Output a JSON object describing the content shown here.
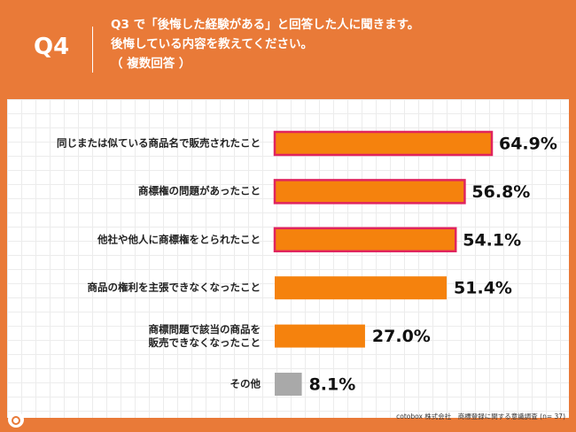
{
  "header": {
    "badge": "Q4",
    "question": [
      "Q3 で「後悔した経験がある」と回答した人に聞きます。",
      "後悔している内容を教えてください。",
      "（ 複数回答 ）"
    ]
  },
  "chart_data": {
    "type": "hbar",
    "categories": [
      "同じまたは似ている商品名で販売されたこと",
      "商標権の問題があったこと",
      "他社や他人に商標権をとられたこと",
      "商品の権利を主張できなくなったこと",
      "商標問題で該当の商品を\n販売できなくなったこと",
      "その他"
    ],
    "values": [
      64.9,
      56.8,
      54.1,
      51.4,
      27.0,
      8.1
    ],
    "value_labels": [
      "64.9%",
      "56.8%",
      "54.1%",
      "51.4%",
      "27.0%",
      "8.1%"
    ],
    "colors": [
      "#f5820d",
      "#f5820d",
      "#f5820d",
      "#f5820d",
      "#f5820d",
      "#a9a9a9"
    ],
    "outlined": [
      true,
      true,
      true,
      false,
      false,
      false
    ],
    "outline_color": "#e0245e",
    "xlim": [
      0,
      80
    ]
  },
  "footer": {
    "source": "cotobox 株式会社　商標登録に関する意識調査 (n= 37)"
  }
}
